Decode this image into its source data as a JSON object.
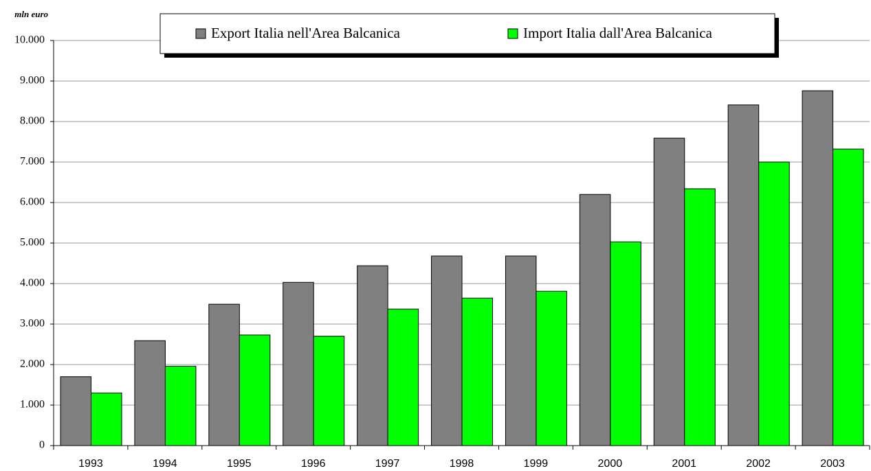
{
  "chart_data": {
    "type": "bar",
    "y_axis_label": "mln euro",
    "categories": [
      "1993",
      "1994",
      "1995",
      "1996",
      "1997",
      "1998",
      "1999",
      "2000",
      "2001",
      "2002",
      "2003"
    ],
    "series": [
      {
        "name": "Export Italia nell'Area Balcanica",
        "color": "#808080",
        "values": [
          1700,
          2590,
          3490,
          4030,
          4440,
          4680,
          4680,
          6200,
          7590,
          8410,
          8760
        ]
      },
      {
        "name": "Import Italia dall'Area Balcanica",
        "color": "#00ff00",
        "values": [
          1300,
          1960,
          2730,
          2700,
          3370,
          3640,
          3810,
          5030,
          6340,
          7000,
          7320
        ]
      }
    ],
    "ylim": [
      0,
      10000
    ],
    "yticks": [
      0,
      {
        "value": 1000,
        "label": "1.000"
      },
      {
        "value": 2000,
        "label": "2.000"
      },
      {
        "value": 3000,
        "label": "3.000"
      },
      {
        "value": 4000,
        "label": "4.000"
      },
      {
        "value": 5000,
        "label": "5.000"
      },
      {
        "value": 6000,
        "label": "6.000"
      },
      {
        "value": 7000,
        "label": "7.000"
      },
      {
        "value": 8000,
        "label": "8.000"
      },
      {
        "value": 9000,
        "label": "9.000"
      },
      {
        "value": 10000,
        "label": "10.000"
      }
    ],
    "grid": true,
    "legend": "top"
  }
}
